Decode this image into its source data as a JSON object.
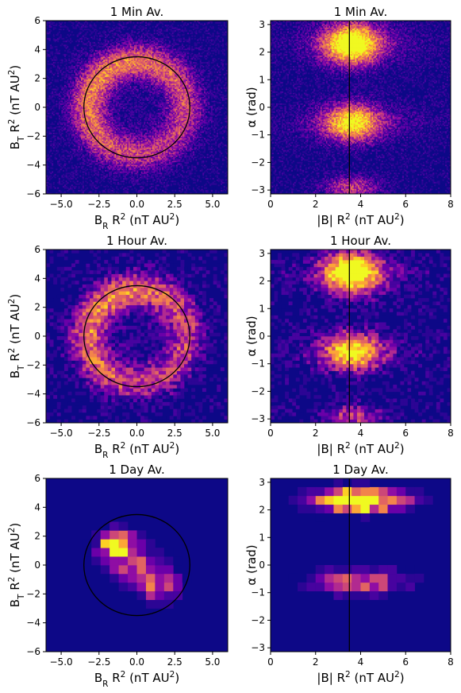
{
  "figure": {
    "background": "#ffffff"
  },
  "colormap": [
    "#0d0887",
    "#2c0594",
    "#47039f",
    "#6a00a8",
    "#8f0da4",
    "#b12a90",
    "#cc4778",
    "#e16462",
    "#f2844b",
    "#fca636",
    "#fcce25",
    "#f0f921"
  ],
  "chart_data": [
    {
      "id": "panel-1min-br-bt",
      "type": "heatmap",
      "title": "1 Min Av.",
      "xlabel": "B_R R^2 (nT AU^2)",
      "ylabel": "B_T R^2 (nT AU^2)",
      "xlim": [
        -6,
        6
      ],
      "ylim": [
        -6,
        6
      ],
      "xticks": [
        -5.0,
        -2.5,
        0.0,
        2.5,
        5.0
      ],
      "xtick_labels": [
        "−5.0",
        "−2.5",
        "0.0",
        "2.5",
        "5.0"
      ],
      "yticks": [
        -6,
        -4,
        -2,
        0,
        2,
        4,
        6
      ],
      "ytick_labels": [
        "−6",
        "−4",
        "−2",
        "0",
        "2",
        "4",
        "6"
      ],
      "bins": 130,
      "pattern": "ring",
      "overlay_circle": {
        "cx": 0,
        "cy": 0,
        "r": 3.5
      }
    },
    {
      "id": "panel-1min-b-alpha",
      "type": "heatmap",
      "title": "1 Min Av.",
      "xlabel": "|B| R^2 (nT AU^2)",
      "ylabel": "α  (rad)",
      "xlim": [
        0,
        8
      ],
      "ylim": [
        -3.14,
        3.14
      ],
      "xticks": [
        0,
        2,
        4,
        6,
        8
      ],
      "xtick_labels": [
        "0",
        "2",
        "4",
        "6",
        "8"
      ],
      "yticks": [
        -3,
        -2,
        -1,
        0,
        1,
        2,
        3
      ],
      "ytick_labels": [
        "−3",
        "−2",
        "−1",
        "0",
        "1",
        "2",
        "3"
      ],
      "bins": 130,
      "pattern": "alpha",
      "overlay_vline": {
        "x": 3.5
      }
    },
    {
      "id": "panel-1hour-br-bt",
      "type": "heatmap",
      "title": "1 Hour Av.",
      "xlabel": "B_R R^2 (nT AU^2)",
      "ylabel": "B_T R^2 (nT AU^2)",
      "xlim": [
        -6,
        6
      ],
      "ylim": [
        -6,
        6
      ],
      "xticks": [
        -5.0,
        -2.5,
        0.0,
        2.5,
        5.0
      ],
      "xtick_labels": [
        "−5.0",
        "−2.5",
        "0.0",
        "2.5",
        "5.0"
      ],
      "yticks": [
        -6,
        -4,
        -2,
        0,
        2,
        4,
        6
      ],
      "ytick_labels": [
        "−6",
        "−4",
        "−2",
        "0",
        "2",
        "4",
        "6"
      ],
      "bins": 50,
      "pattern": "ring",
      "overlay_circle": {
        "cx": 0,
        "cy": 0,
        "r": 3.5
      }
    },
    {
      "id": "panel-1hour-b-alpha",
      "type": "heatmap",
      "title": "1 Hour Av.",
      "xlabel": "|B| R^2 (nT AU^2)",
      "ylabel": "α  (rad)",
      "xlim": [
        0,
        8
      ],
      "ylim": [
        -3.14,
        3.14
      ],
      "xticks": [
        0,
        2,
        4,
        6,
        8
      ],
      "xtick_labels": [
        "0",
        "2",
        "4",
        "6",
        "8"
      ],
      "yticks": [
        -3,
        -2,
        -1,
        0,
        1,
        2,
        3
      ],
      "ytick_labels": [
        "−3",
        "−2",
        "−1",
        "0",
        "1",
        "2",
        "3"
      ],
      "bins": 50,
      "pattern": "alpha",
      "overlay_vline": {
        "x": 3.5
      }
    },
    {
      "id": "panel-1day-br-bt",
      "type": "heatmap",
      "title": "1 Day Av.",
      "xlabel": "B_R R^2 (nT AU^2)",
      "ylabel": "B_T R^2 (nT AU^2)",
      "xlim": [
        -6,
        6
      ],
      "ylim": [
        -6,
        6
      ],
      "xticks": [
        -5.0,
        -2.5,
        0.0,
        2.5,
        5.0
      ],
      "xtick_labels": [
        "−5.0",
        "−2.5",
        "0.0",
        "2.5",
        "5.0"
      ],
      "yticks": [
        -6,
        -4,
        -2,
        0,
        2,
        4,
        6
      ],
      "ytick_labels": [
        "−6",
        "−4",
        "−2",
        "0",
        "2",
        "4",
        "6"
      ],
      "bins": 20,
      "pattern": "day-ring",
      "overlay_circle": {
        "cx": 0,
        "cy": 0,
        "r": 3.5
      }
    },
    {
      "id": "panel-1day-b-alpha",
      "type": "heatmap",
      "title": "1 Day Av.",
      "xlabel": "|B| R^2 (nT AU^2)",
      "ylabel": "α  (rad)",
      "xlim": [
        0,
        8
      ],
      "ylim": [
        -3.14,
        3.14
      ],
      "xticks": [
        0,
        2,
        4,
        6,
        8
      ],
      "xtick_labels": [
        "0",
        "2",
        "4",
        "6",
        "8"
      ],
      "yticks": [
        -3,
        -2,
        -1,
        0,
        1,
        2,
        3
      ],
      "ytick_labels": [
        "−3",
        "−2",
        "−1",
        "0",
        "1",
        "2",
        "3"
      ],
      "bins": 20,
      "pattern": "day-alpha",
      "overlay_vline": {
        "x": 3.5
      }
    }
  ]
}
